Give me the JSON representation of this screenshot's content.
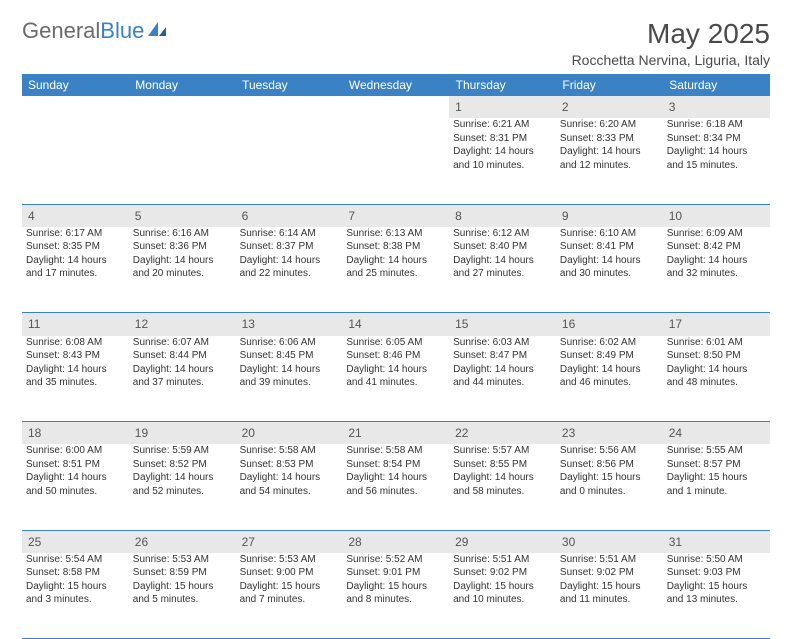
{
  "logo": {
    "text1": "General",
    "text2": "Blue"
  },
  "title": "May 2025",
  "location": "Rocchetta Nervina, Liguria, Italy",
  "header_bg": "#3b82c4",
  "header_fg": "#ffffff",
  "daynum_bg": "#e8e8e8",
  "divider_color": "#3b82c4",
  "days_of_week": [
    "Sunday",
    "Monday",
    "Tuesday",
    "Wednesday",
    "Thursday",
    "Friday",
    "Saturday"
  ],
  "weeks": [
    [
      null,
      null,
      null,
      null,
      {
        "n": "1",
        "sr": "Sunrise: 6:21 AM",
        "ss": "Sunset: 8:31 PM",
        "dl1": "Daylight: 14 hours",
        "dl2": "and 10 minutes."
      },
      {
        "n": "2",
        "sr": "Sunrise: 6:20 AM",
        "ss": "Sunset: 8:33 PM",
        "dl1": "Daylight: 14 hours",
        "dl2": "and 12 minutes."
      },
      {
        "n": "3",
        "sr": "Sunrise: 6:18 AM",
        "ss": "Sunset: 8:34 PM",
        "dl1": "Daylight: 14 hours",
        "dl2": "and 15 minutes."
      }
    ],
    [
      {
        "n": "4",
        "sr": "Sunrise: 6:17 AM",
        "ss": "Sunset: 8:35 PM",
        "dl1": "Daylight: 14 hours",
        "dl2": "and 17 minutes."
      },
      {
        "n": "5",
        "sr": "Sunrise: 6:16 AM",
        "ss": "Sunset: 8:36 PM",
        "dl1": "Daylight: 14 hours",
        "dl2": "and 20 minutes."
      },
      {
        "n": "6",
        "sr": "Sunrise: 6:14 AM",
        "ss": "Sunset: 8:37 PM",
        "dl1": "Daylight: 14 hours",
        "dl2": "and 22 minutes."
      },
      {
        "n": "7",
        "sr": "Sunrise: 6:13 AM",
        "ss": "Sunset: 8:38 PM",
        "dl1": "Daylight: 14 hours",
        "dl2": "and 25 minutes."
      },
      {
        "n": "8",
        "sr": "Sunrise: 6:12 AM",
        "ss": "Sunset: 8:40 PM",
        "dl1": "Daylight: 14 hours",
        "dl2": "and 27 minutes."
      },
      {
        "n": "9",
        "sr": "Sunrise: 6:10 AM",
        "ss": "Sunset: 8:41 PM",
        "dl1": "Daylight: 14 hours",
        "dl2": "and 30 minutes."
      },
      {
        "n": "10",
        "sr": "Sunrise: 6:09 AM",
        "ss": "Sunset: 8:42 PM",
        "dl1": "Daylight: 14 hours",
        "dl2": "and 32 minutes."
      }
    ],
    [
      {
        "n": "11",
        "sr": "Sunrise: 6:08 AM",
        "ss": "Sunset: 8:43 PM",
        "dl1": "Daylight: 14 hours",
        "dl2": "and 35 minutes."
      },
      {
        "n": "12",
        "sr": "Sunrise: 6:07 AM",
        "ss": "Sunset: 8:44 PM",
        "dl1": "Daylight: 14 hours",
        "dl2": "and 37 minutes."
      },
      {
        "n": "13",
        "sr": "Sunrise: 6:06 AM",
        "ss": "Sunset: 8:45 PM",
        "dl1": "Daylight: 14 hours",
        "dl2": "and 39 minutes."
      },
      {
        "n": "14",
        "sr": "Sunrise: 6:05 AM",
        "ss": "Sunset: 8:46 PM",
        "dl1": "Daylight: 14 hours",
        "dl2": "and 41 minutes."
      },
      {
        "n": "15",
        "sr": "Sunrise: 6:03 AM",
        "ss": "Sunset: 8:47 PM",
        "dl1": "Daylight: 14 hours",
        "dl2": "and 44 minutes."
      },
      {
        "n": "16",
        "sr": "Sunrise: 6:02 AM",
        "ss": "Sunset: 8:49 PM",
        "dl1": "Daylight: 14 hours",
        "dl2": "and 46 minutes."
      },
      {
        "n": "17",
        "sr": "Sunrise: 6:01 AM",
        "ss": "Sunset: 8:50 PM",
        "dl1": "Daylight: 14 hours",
        "dl2": "and 48 minutes."
      }
    ],
    [
      {
        "n": "18",
        "sr": "Sunrise: 6:00 AM",
        "ss": "Sunset: 8:51 PM",
        "dl1": "Daylight: 14 hours",
        "dl2": "and 50 minutes."
      },
      {
        "n": "19",
        "sr": "Sunrise: 5:59 AM",
        "ss": "Sunset: 8:52 PM",
        "dl1": "Daylight: 14 hours",
        "dl2": "and 52 minutes."
      },
      {
        "n": "20",
        "sr": "Sunrise: 5:58 AM",
        "ss": "Sunset: 8:53 PM",
        "dl1": "Daylight: 14 hours",
        "dl2": "and 54 minutes."
      },
      {
        "n": "21",
        "sr": "Sunrise: 5:58 AM",
        "ss": "Sunset: 8:54 PM",
        "dl1": "Daylight: 14 hours",
        "dl2": "and 56 minutes."
      },
      {
        "n": "22",
        "sr": "Sunrise: 5:57 AM",
        "ss": "Sunset: 8:55 PM",
        "dl1": "Daylight: 14 hours",
        "dl2": "and 58 minutes."
      },
      {
        "n": "23",
        "sr": "Sunrise: 5:56 AM",
        "ss": "Sunset: 8:56 PM",
        "dl1": "Daylight: 15 hours",
        "dl2": "and 0 minutes."
      },
      {
        "n": "24",
        "sr": "Sunrise: 5:55 AM",
        "ss": "Sunset: 8:57 PM",
        "dl1": "Daylight: 15 hours",
        "dl2": "and 1 minute."
      }
    ],
    [
      {
        "n": "25",
        "sr": "Sunrise: 5:54 AM",
        "ss": "Sunset: 8:58 PM",
        "dl1": "Daylight: 15 hours",
        "dl2": "and 3 minutes."
      },
      {
        "n": "26",
        "sr": "Sunrise: 5:53 AM",
        "ss": "Sunset: 8:59 PM",
        "dl1": "Daylight: 15 hours",
        "dl2": "and 5 minutes."
      },
      {
        "n": "27",
        "sr": "Sunrise: 5:53 AM",
        "ss": "Sunset: 9:00 PM",
        "dl1": "Daylight: 15 hours",
        "dl2": "and 7 minutes."
      },
      {
        "n": "28",
        "sr": "Sunrise: 5:52 AM",
        "ss": "Sunset: 9:01 PM",
        "dl1": "Daylight: 15 hours",
        "dl2": "and 8 minutes."
      },
      {
        "n": "29",
        "sr": "Sunrise: 5:51 AM",
        "ss": "Sunset: 9:02 PM",
        "dl1": "Daylight: 15 hours",
        "dl2": "and 10 minutes."
      },
      {
        "n": "30",
        "sr": "Sunrise: 5:51 AM",
        "ss": "Sunset: 9:02 PM",
        "dl1": "Daylight: 15 hours",
        "dl2": "and 11 minutes."
      },
      {
        "n": "31",
        "sr": "Sunrise: 5:50 AM",
        "ss": "Sunset: 9:03 PM",
        "dl1": "Daylight: 15 hours",
        "dl2": "and 13 minutes."
      }
    ]
  ]
}
